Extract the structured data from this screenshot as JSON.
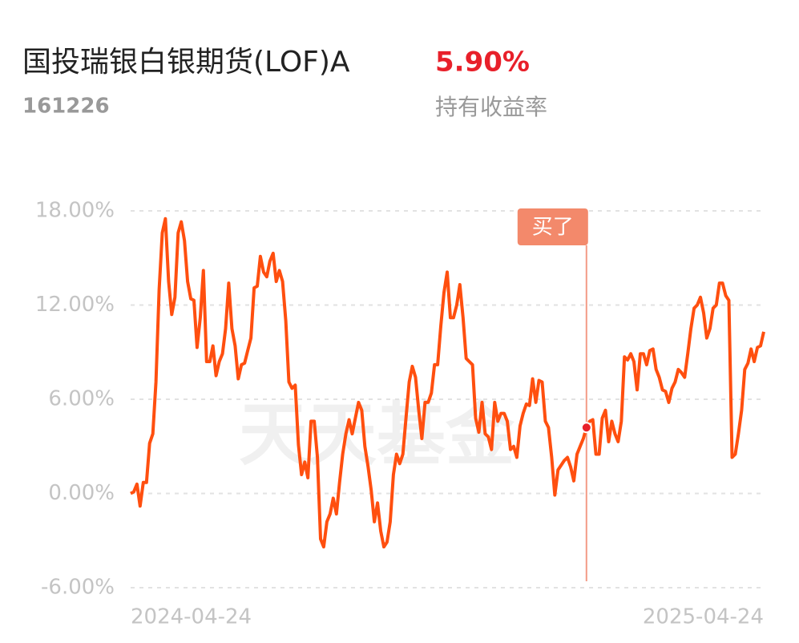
{
  "header": {
    "title": "国投瑞银白银期货(LOF)A",
    "return_value": "5.90%",
    "code": "161226",
    "return_label": "持有收益率"
  },
  "chart_data": {
    "type": "line",
    "watermark": "天天基金",
    "color": "#ff4f0f",
    "grid": true,
    "ylim": [
      -6,
      18
    ],
    "yticks": [
      {
        "value": -6,
        "label": "-6.00%"
      },
      {
        "value": 0,
        "label": "0.00%"
      },
      {
        "value": 6,
        "label": "6.00%"
      },
      {
        "value": 12,
        "label": "12.00%"
      },
      {
        "value": 18,
        "label": "18.00%"
      }
    ],
    "categories": [
      "2024-04-24",
      null,
      null,
      null,
      null,
      null,
      null,
      null,
      null,
      null,
      null,
      null,
      null,
      null,
      null,
      null,
      null,
      null,
      null,
      null,
      null,
      null,
      null,
      null,
      null,
      null,
      null,
      null,
      null,
      null,
      null,
      null,
      null,
      null,
      null,
      null,
      null,
      null,
      null,
      null,
      null,
      null,
      null,
      null,
      null,
      null,
      null,
      null,
      null,
      null,
      null,
      null,
      null,
      null,
      null,
      null,
      null,
      null,
      null,
      null,
      null,
      null,
      null,
      null,
      null,
      null,
      null,
      null,
      null,
      null,
      null,
      null,
      null,
      null,
      null,
      null,
      null,
      null,
      null,
      null,
      null,
      null,
      null,
      null,
      null,
      null,
      null,
      null,
      null,
      null,
      null,
      null,
      null,
      null,
      null,
      null,
      null,
      null,
      null,
      null,
      null,
      null,
      null,
      null,
      null,
      null,
      null,
      null,
      null,
      null,
      null,
      null,
      null,
      null,
      null,
      null,
      null,
      null,
      null,
      null,
      null,
      null,
      null,
      null,
      null,
      null,
      null,
      null,
      null,
      null,
      null,
      null,
      null,
      null,
      null,
      null,
      null,
      null,
      null,
      null,
      null,
      null,
      null,
      null,
      null,
      null,
      null,
      null,
      null,
      null,
      null,
      null,
      null,
      null,
      null,
      null,
      null,
      null,
      null,
      null,
      null,
      null,
      null,
      null,
      null,
      null,
      null,
      null,
      null,
      null,
      null,
      null,
      null,
      null,
      null,
      null,
      null,
      null,
      null,
      null,
      null,
      null,
      null,
      null,
      null,
      null,
      null,
      null,
      null,
      null,
      null,
      null,
      null,
      null,
      null,
      null,
      null,
      null,
      null,
      null,
      "2025-04-24"
    ],
    "values": [
      0,
      0.1,
      0.6,
      -0.8,
      0.7,
      0.7,
      3.2,
      3.8,
      7.1,
      13.0,
      16.6,
      17.5,
      13.5,
      11.4,
      12.5,
      16.6,
      17.3,
      16.1,
      13.5,
      12.4,
      12.3,
      9.3,
      11.2,
      14.2,
      8.4,
      8.4,
      9.4,
      7.5,
      8.4,
      8.9,
      10.5,
      13.4,
      10.5,
      9.4,
      7.3,
      8.2,
      8.3,
      9.1,
      9.9,
      13.1,
      13.2,
      15.1,
      14.1,
      13.8,
      14.8,
      15.3,
      13.5,
      14.2,
      13.5,
      11.0,
      7.1,
      6.7,
      6.9,
      3.1,
      1.2,
      2.0,
      1.0,
      4.6,
      4.6,
      2.3,
      -2.9,
      -3.4,
      -1.8,
      -1.3,
      -0.3,
      -1.3,
      0.7,
      2.5,
      3.8,
      4.7,
      3.8,
      4.8,
      5.8,
      5.3,
      3.0,
      1.7,
      0.2,
      -1.8,
      -0.6,
      -2.4,
      -3.4,
      -3.1,
      -1.8,
      1.2,
      2.5,
      1.9,
      2.5,
      4.8,
      7.1,
      8.1,
      7.4,
      5.3,
      3.5,
      5.8,
      5.8,
      6.4,
      8.2,
      8.2,
      10.7,
      12.8,
      14.1,
      11.2,
      11.2,
      12.0,
      13.3,
      11.2,
      8.6,
      8.4,
      8.2,
      4.8,
      3.9,
      5.8,
      3.8,
      3.6,
      2.8,
      5.8,
      4.6,
      5.1,
      5.1,
      4.6,
      2.8,
      3.0,
      2.3,
      4.3,
      5.1,
      5.7,
      5.6,
      7.3,
      5.8,
      7.2,
      7.1,
      4.6,
      4.2,
      2.3,
      -0.1,
      1.5,
      1.8,
      2.1,
      2.3,
      1.7,
      0.8,
      2.5,
      3.0,
      3.5,
      4.2,
      4.6,
      4.7,
      2.5,
      2.5,
      4.8,
      5.3,
      3.3,
      4.6,
      3.8,
      3.3,
      4.6,
      8.7,
      8.5,
      8.9,
      8.4,
      6.6,
      8.9,
      8.9,
      8.2,
      9.1,
      9.2,
      7.9,
      7.4,
      6.6,
      6.5,
      5.8,
      6.7,
      7.1,
      7.9,
      7.7,
      7.4,
      8.9,
      10.5,
      11.8,
      12.0,
      12.5,
      11.5,
      9.9,
      10.5,
      11.8,
      12.0,
      13.4,
      13.4,
      12.6,
      12.3,
      2.3,
      2.5,
      3.8,
      5.3,
      7.9,
      8.3,
      9.2,
      8.4,
      9.3,
      9.4,
      10.3
    ],
    "annotations": [
      {
        "label": "买了",
        "index": 144
      }
    ]
  }
}
